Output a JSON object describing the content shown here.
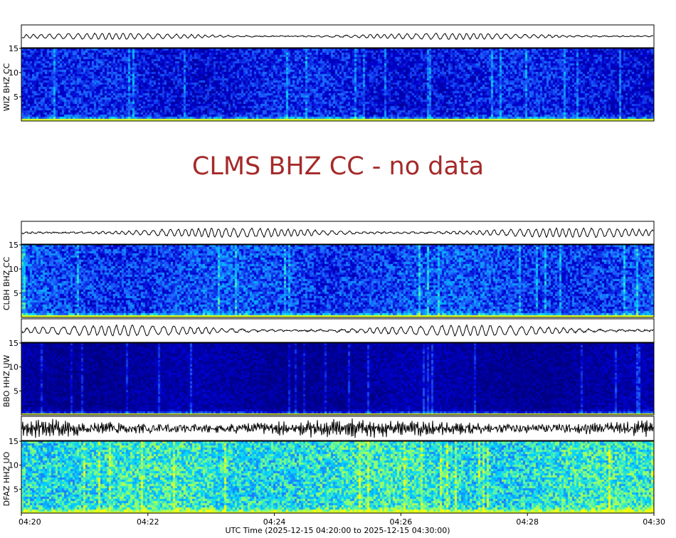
{
  "chart_data": {
    "type": "heatmap",
    "xlabel": "UTC Time (2025-12-15 04:20:00 to 2025-12-15 04:30:00)",
    "x_ticks": [
      "04:20",
      "04:22",
      "04:24",
      "04:26",
      "04:28",
      "04:30"
    ],
    "y_ticks": [
      "5",
      "10",
      "15"
    ],
    "ylim": [
      0,
      15
    ],
    "colormap": [
      "#00007f",
      "#0000d0",
      "#1e64ff",
      "#00d4ff",
      "#7fff7f",
      "#ffff00"
    ],
    "trace_color": "#000000",
    "panels": [
      {
        "station": "WIZ BHZ CC",
        "has_data": true,
        "intensity": "low"
      },
      {
        "station": "CLMS BHZ CC",
        "has_data": false,
        "message": "CLMS BHZ CC - no data"
      },
      {
        "station": "CLBH BHZ CC",
        "has_data": true,
        "intensity": "medium"
      },
      {
        "station": "BBO HHZ UW",
        "has_data": true,
        "intensity": "very-low"
      },
      {
        "station": "DFAZ HHZ UO",
        "has_data": true,
        "intensity": "high"
      }
    ]
  }
}
